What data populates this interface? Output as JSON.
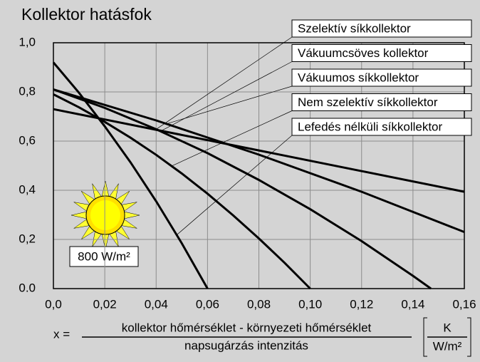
{
  "chart_data": {
    "type": "line",
    "title": "Kollektor hatásfok",
    "annotation": "800 W/m²",
    "x_label": {
      "prefix": "x =",
      "numerator": "kollektor hőmérséklet - környezeti hőmérséklet",
      "denominator": "napsugárzás intenzitás"
    },
    "x_unit": {
      "numerator": "K",
      "denominator": "W/m²"
    },
    "xlim": [
      0,
      0.16
    ],
    "xticks": [
      {
        "value": 0,
        "label": "0,0"
      },
      {
        "value": 0.02,
        "label": "0,02"
      },
      {
        "value": 0.04,
        "label": "0,04"
      },
      {
        "value": 0.06,
        "label": "0,06"
      },
      {
        "value": 0.08,
        "label": "0,08"
      },
      {
        "value": 0.1,
        "label": "0,10"
      },
      {
        "value": 0.12,
        "label": "0,12"
      },
      {
        "value": 0.14,
        "label": "0,14"
      },
      {
        "value": 0.16,
        "label": "0,16"
      }
    ],
    "ylim": [
      0,
      1
    ],
    "yticks": [
      {
        "value": 0,
        "label": "0.0"
      },
      {
        "value": 0.2,
        "label": "0,2"
      },
      {
        "value": 0.4,
        "label": "0,4"
      },
      {
        "value": 0.6,
        "label": "0,6"
      },
      {
        "value": 0.8,
        "label": "0,8"
      },
      {
        "value": 1,
        "label": "1,0"
      }
    ],
    "grid": true,
    "series": [
      {
        "name": "Szelektív síkkollektor",
        "color": "#000000",
        "x": [
          0,
          0.02,
          0.04,
          0.06,
          0.08,
          0.1,
          0.12,
          0.14,
          0.147
        ],
        "values": [
          0.81,
          0.735,
          0.648,
          0.551,
          0.442,
          0.323,
          0.193,
          0.052,
          0
        ]
      },
      {
        "name": "Vákuumcsöves kollektor",
        "color": "#000000",
        "x": [
          0,
          0.08,
          0.16
        ],
        "values": [
          0.73,
          0.562,
          0.394
        ]
      },
      {
        "name": "Vákuumos síkkollektor",
        "color": "#000000",
        "x": [
          0,
          0.04,
          0.08,
          0.12,
          0.16
        ],
        "values": [
          0.81,
          0.684,
          0.545,
          0.394,
          0.23
        ]
      },
      {
        "name": "Nem szelektív síkkollektor",
        "color": "#000000",
        "x": [
          0,
          0.01,
          0.02,
          0.03,
          0.04,
          0.05,
          0.06,
          0.07,
          0.08,
          0.09,
          0.1
        ],
        "values": [
          0.79,
          0.737,
          0.678,
          0.614,
          0.544,
          0.468,
          0.386,
          0.298,
          0.204,
          0.105,
          0
        ]
      },
      {
        "name": "Lefedés nélküli síkkollektor",
        "color": "#000000",
        "x": [
          0,
          0.01,
          0.02,
          0.03,
          0.04,
          0.05,
          0.06
        ],
        "values": [
          0.92,
          0.796,
          0.66,
          0.514,
          0.355,
          0.184,
          0
        ]
      }
    ]
  }
}
